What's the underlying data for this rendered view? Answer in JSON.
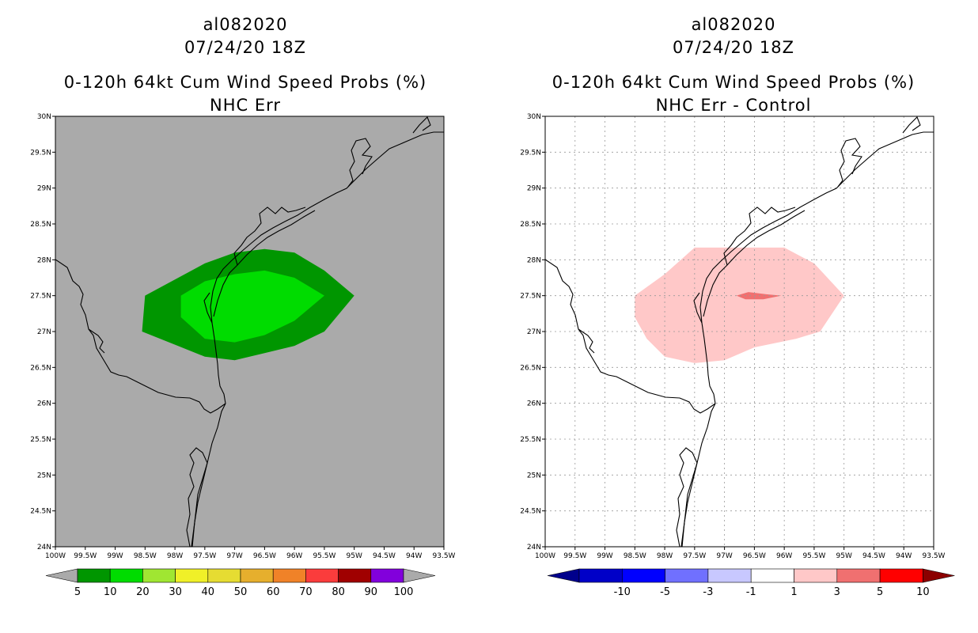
{
  "colors": {
    "left_background": "#aaaaaa",
    "prob_5": "#009600",
    "prob_10": "#00dc00",
    "diff_1_3": "#ffc8c8",
    "diff_3_5": "#f07070",
    "coast": "#000000",
    "grid": "#999999"
  },
  "axes": {
    "lat_labels": [
      "30N",
      "29.5N",
      "29N",
      "28.5N",
      "28N",
      "27.5N",
      "27N",
      "26.5N",
      "26N",
      "25.5N",
      "25N",
      "24.5N",
      "24N"
    ],
    "lon_labels": [
      "100W",
      "99.5W",
      "99W",
      "98.5W",
      "98W",
      "97.5W",
      "97W",
      "96.5W",
      "96W",
      "95.5W",
      "95W",
      "94.5W",
      "94W",
      "93.5W"
    ],
    "lat_range": [
      24,
      30
    ],
    "lon_range": [
      -100,
      -93.5
    ]
  },
  "left_panel": {
    "storm": "al082020",
    "date": "07/24/20 18Z",
    "title": "0-120h 64kt Cum Wind Speed Probs (%)",
    "subtitle": "NHC Err",
    "colorbar": {
      "labels": [
        "5",
        "10",
        "20",
        "30",
        "40",
        "50",
        "60",
        "70",
        "80",
        "90",
        "100"
      ],
      "colors": [
        "#009600",
        "#00dc00",
        "#a0e632",
        "#f0f028",
        "#e6dc32",
        "#e6af2d",
        "#f08228",
        "#fa3c3c",
        "#a00000",
        "#8200dc"
      ],
      "end_color": "#aaaaaa"
    },
    "contour_5pct_polygon": [
      [
        -98.5,
        27.5
      ],
      [
        -97.5,
        27.95
      ],
      [
        -97.0,
        28.1
      ],
      [
        -96.5,
        28.15
      ],
      [
        -96.0,
        28.1
      ],
      [
        -95.5,
        27.85
      ],
      [
        -95.0,
        27.5
      ],
      [
        -95.5,
        27.0
      ],
      [
        -96.0,
        26.8
      ],
      [
        -96.5,
        26.7
      ],
      [
        -97.0,
        26.6
      ],
      [
        -97.5,
        26.65
      ],
      [
        -97.95,
        26.8
      ],
      [
        -98.55,
        27.0
      ]
    ],
    "contour_10pct_polygon": [
      [
        -97.9,
        27.5
      ],
      [
        -97.5,
        27.7
      ],
      [
        -97.0,
        27.8
      ],
      [
        -96.5,
        27.85
      ],
      [
        -96.0,
        27.75
      ],
      [
        -95.5,
        27.5
      ],
      [
        -96.0,
        27.15
      ],
      [
        -96.5,
        26.95
      ],
      [
        -97.0,
        26.85
      ],
      [
        -97.5,
        26.9
      ],
      [
        -97.9,
        27.2
      ]
    ]
  },
  "right_panel": {
    "storm": "al082020",
    "date": "07/24/20 18Z",
    "title": "0-120h 64kt Cum Wind Speed Probs (%)",
    "subtitle": "NHC Err - Control",
    "colorbar": {
      "labels": [
        "-10",
        "-5",
        "-3",
        "-1",
        "1",
        "3",
        "5",
        "10"
      ],
      "colors": [
        "#0000c8",
        "#0000ff",
        "#7070ff",
        "#c8c8ff",
        "#ffffff",
        "#ffc8c8",
        "#f07070",
        "#ff0000"
      ],
      "left_end_color": "#00008c",
      "right_end_color": "#8c0000"
    },
    "contour_1_3_polygon": [
      [
        -98.5,
        27.5
      ],
      [
        -98.0,
        27.8
      ],
      [
        -97.5,
        28.17
      ],
      [
        -97.0,
        28.17
      ],
      [
        -96.5,
        28.17
      ],
      [
        -96.0,
        28.17
      ],
      [
        -95.5,
        27.95
      ],
      [
        -95.0,
        27.5
      ],
      [
        -95.4,
        27.0
      ],
      [
        -95.8,
        26.9
      ],
      [
        -96.5,
        26.78
      ],
      [
        -97.0,
        26.6
      ],
      [
        -97.5,
        26.56
      ],
      [
        -98.0,
        26.65
      ],
      [
        -98.3,
        26.9
      ],
      [
        -98.5,
        27.2
      ]
    ],
    "contour_3_5_polygon": [
      [
        -96.8,
        27.5
      ],
      [
        -96.6,
        27.55
      ],
      [
        -96.3,
        27.52
      ],
      [
        -96.05,
        27.5
      ],
      [
        -96.35,
        27.45
      ],
      [
        -96.65,
        27.45
      ]
    ]
  }
}
